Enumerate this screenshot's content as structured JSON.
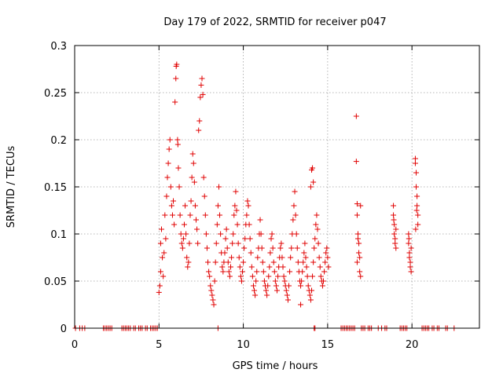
{
  "chart_data": {
    "type": "scatter",
    "title": "Day 179 of 2022, SRMTID for receiver p047",
    "xlabel": "GPS time / hours",
    "ylabel": "SRMTID / TECUs",
    "xlim": [
      0,
      24
    ],
    "ylim": [
      0,
      0.3
    ],
    "x_ticks": [
      0,
      5,
      10,
      15,
      20
    ],
    "x_tick_labels": [
      "0",
      "5",
      "10",
      "15",
      "20"
    ],
    "y_ticks": [
      0,
      0.05,
      0.1,
      0.15,
      0.2,
      0.25,
      0.3
    ],
    "y_tick_labels": [
      "0",
      "0.05",
      "0.1",
      "0.15",
      "0.2",
      "0.25",
      "0.3"
    ],
    "grid": true,
    "marker": "+",
    "series": [
      {
        "name": "SRMTID",
        "color": "#e00000",
        "points": [
          [
            0.05,
            0
          ],
          [
            0.3,
            0
          ],
          [
            0.45,
            0
          ],
          [
            0.6,
            0
          ],
          [
            1.7,
            0
          ],
          [
            1.8,
            0
          ],
          [
            1.9,
            0
          ],
          [
            2.0,
            0
          ],
          [
            2.1,
            0
          ],
          [
            2.2,
            0
          ],
          [
            2.8,
            0
          ],
          [
            2.9,
            0
          ],
          [
            3.0,
            0
          ],
          [
            3.1,
            0
          ],
          [
            3.2,
            0
          ],
          [
            3.3,
            0
          ],
          [
            3.5,
            0
          ],
          [
            3.6,
            0
          ],
          [
            3.8,
            0
          ],
          [
            3.9,
            0
          ],
          [
            4.0,
            0
          ],
          [
            4.2,
            0
          ],
          [
            4.3,
            0
          ],
          [
            4.5,
            0
          ],
          [
            4.6,
            0
          ],
          [
            4.7,
            0
          ],
          [
            4.8,
            0
          ],
          [
            4.9,
            0
          ],
          [
            8.5,
            0
          ],
          [
            14.2,
            0
          ],
          [
            14.25,
            0
          ],
          [
            15.8,
            0
          ],
          [
            15.9,
            0
          ],
          [
            16.0,
            0
          ],
          [
            16.1,
            0
          ],
          [
            16.2,
            0
          ],
          [
            16.3,
            0
          ],
          [
            16.4,
            0
          ],
          [
            16.5,
            0
          ],
          [
            16.6,
            0
          ],
          [
            17.0,
            0
          ],
          [
            17.1,
            0
          ],
          [
            17.2,
            0
          ],
          [
            17.4,
            0
          ],
          [
            17.5,
            0
          ],
          [
            17.6,
            0
          ],
          [
            18.0,
            0
          ],
          [
            18.2,
            0
          ],
          [
            18.4,
            0
          ],
          [
            18.5,
            0
          ],
          [
            19.3,
            0
          ],
          [
            19.4,
            0
          ],
          [
            19.5,
            0
          ],
          [
            19.6,
            0
          ],
          [
            19.7,
            0
          ],
          [
            20.6,
            0
          ],
          [
            20.7,
            0
          ],
          [
            20.8,
            0
          ],
          [
            20.9,
            0
          ],
          [
            21.0,
            0
          ],
          [
            21.2,
            0
          ],
          [
            21.3,
            0
          ],
          [
            21.5,
            0
          ],
          [
            21.6,
            0
          ],
          [
            22.0,
            0
          ],
          [
            22.1,
            0
          ],
          [
            22.5,
            0
          ],
          [
            5.0,
            0.038
          ],
          [
            5.05,
            0.045
          ],
          [
            5.1,
            0.06
          ],
          [
            5.1,
            0.09
          ],
          [
            5.15,
            0.105
          ],
          [
            5.2,
            0.075
          ],
          [
            5.25,
            0.055
          ],
          [
            5.3,
            0.08
          ],
          [
            5.35,
            0.12
          ],
          [
            5.4,
            0.095
          ],
          [
            5.45,
            0.14
          ],
          [
            5.5,
            0.16
          ],
          [
            5.55,
            0.175
          ],
          [
            5.6,
            0.19
          ],
          [
            5.65,
            0.2
          ],
          [
            5.7,
            0.15
          ],
          [
            5.75,
            0.13
          ],
          [
            5.8,
            0.12
          ],
          [
            5.85,
            0.135
          ],
          [
            5.9,
            0.11
          ],
          [
            5.95,
            0.24
          ],
          [
            6.0,
            0.265
          ],
          [
            6.02,
            0.278
          ],
          [
            6.05,
            0.28
          ],
          [
            6.1,
            0.2
          ],
          [
            6.12,
            0.195
          ],
          [
            6.15,
            0.17
          ],
          [
            6.2,
            0.15
          ],
          [
            6.25,
            0.12
          ],
          [
            6.3,
            0.1
          ],
          [
            6.35,
            0.09
          ],
          [
            6.4,
            0.085
          ],
          [
            6.45,
            0.095
          ],
          [
            6.5,
            0.11
          ],
          [
            6.55,
            0.13
          ],
          [
            6.6,
            0.1
          ],
          [
            6.65,
            0.075
          ],
          [
            6.7,
            0.065
          ],
          [
            6.75,
            0.07
          ],
          [
            6.8,
            0.09
          ],
          [
            6.85,
            0.12
          ],
          [
            6.9,
            0.135
          ],
          [
            6.95,
            0.16
          ],
          [
            7.0,
            0.185
          ],
          [
            7.05,
            0.175
          ],
          [
            7.1,
            0.155
          ],
          [
            7.15,
            0.13
          ],
          [
            7.2,
            0.115
          ],
          [
            7.25,
            0.105
          ],
          [
            7.3,
            0.09
          ],
          [
            7.35,
            0.21
          ],
          [
            7.4,
            0.22
          ],
          [
            7.45,
            0.245
          ],
          [
            7.5,
            0.258
          ],
          [
            7.55,
            0.265
          ],
          [
            7.6,
            0.248
          ],
          [
            7.65,
            0.16
          ],
          [
            7.7,
            0.14
          ],
          [
            7.75,
            0.12
          ],
          [
            7.8,
            0.1
          ],
          [
            7.85,
            0.085
          ],
          [
            7.9,
            0.07
          ],
          [
            7.95,
            0.06
          ],
          [
            8.0,
            0.055
          ],
          [
            8.05,
            0.045
          ],
          [
            8.1,
            0.04
          ],
          [
            8.15,
            0.035
          ],
          [
            8.2,
            0.03
          ],
          [
            8.25,
            0.025
          ],
          [
            8.3,
            0.05
          ],
          [
            8.35,
            0.07
          ],
          [
            8.4,
            0.09
          ],
          [
            8.45,
            0.11
          ],
          [
            8.5,
            0.13
          ],
          [
            8.55,
            0.15
          ],
          [
            8.6,
            0.12
          ],
          [
            8.65,
            0.1
          ],
          [
            8.7,
            0.08
          ],
          [
            8.75,
            0.065
          ],
          [
            8.8,
            0.06
          ],
          [
            8.85,
            0.07
          ],
          [
            8.9,
            0.08
          ],
          [
            8.95,
            0.095
          ],
          [
            9.0,
            0.105
          ],
          [
            9.05,
            0.085
          ],
          [
            9.1,
            0.07
          ],
          [
            9.15,
            0.06
          ],
          [
            9.2,
            0.055
          ],
          [
            9.25,
            0.065
          ],
          [
            9.3,
            0.075
          ],
          [
            9.35,
            0.09
          ],
          [
            9.4,
            0.1
          ],
          [
            9.45,
            0.12
          ],
          [
            9.5,
            0.13
          ],
          [
            9.55,
            0.145
          ],
          [
            9.6,
            0.125
          ],
          [
            9.65,
            0.11
          ],
          [
            9.7,
            0.09
          ],
          [
            9.75,
            0.075
          ],
          [
            9.8,
            0.065
          ],
          [
            9.85,
            0.055
          ],
          [
            9.9,
            0.05
          ],
          [
            9.95,
            0.06
          ],
          [
            10.0,
            0.07
          ],
          [
            10.05,
            0.085
          ],
          [
            10.1,
            0.095
          ],
          [
            10.15,
            0.11
          ],
          [
            10.2,
            0.12
          ],
          [
            10.25,
            0.135
          ],
          [
            10.3,
            0.13
          ],
          [
            10.35,
            0.11
          ],
          [
            10.4,
            0.095
          ],
          [
            10.45,
            0.08
          ],
          [
            10.5,
            0.065
          ],
          [
            10.55,
            0.055
          ],
          [
            10.6,
            0.045
          ],
          [
            10.65,
            0.04
          ],
          [
            10.7,
            0.035
          ],
          [
            10.75,
            0.05
          ],
          [
            10.8,
            0.06
          ],
          [
            10.85,
            0.075
          ],
          [
            10.9,
            0.085
          ],
          [
            10.95,
            0.1
          ],
          [
            11.0,
            0.115
          ],
          [
            11.05,
            0.1
          ],
          [
            11.1,
            0.085
          ],
          [
            11.15,
            0.07
          ],
          [
            11.2,
            0.06
          ],
          [
            11.25,
            0.05
          ],
          [
            11.3,
            0.045
          ],
          [
            11.35,
            0.04
          ],
          [
            11.4,
            0.035
          ],
          [
            11.45,
            0.045
          ],
          [
            11.5,
            0.055
          ],
          [
            11.55,
            0.065
          ],
          [
            11.6,
            0.08
          ],
          [
            11.65,
            0.095
          ],
          [
            11.7,
            0.1
          ],
          [
            11.75,
            0.085
          ],
          [
            11.8,
            0.07
          ],
          [
            11.85,
            0.06
          ],
          [
            11.9,
            0.05
          ],
          [
            11.95,
            0.045
          ],
          [
            12.0,
            0.04
          ],
          [
            12.05,
            0.055
          ],
          [
            12.1,
            0.065
          ],
          [
            12.15,
            0.075
          ],
          [
            12.2,
            0.085
          ],
          [
            12.25,
            0.09
          ],
          [
            12.3,
            0.075
          ],
          [
            12.35,
            0.065
          ],
          [
            12.4,
            0.055
          ],
          [
            12.45,
            0.05
          ],
          [
            12.5,
            0.045
          ],
          [
            12.55,
            0.04
          ],
          [
            12.6,
            0.035
          ],
          [
            12.65,
            0.03
          ],
          [
            12.7,
            0.045
          ],
          [
            12.75,
            0.06
          ],
          [
            12.8,
            0.075
          ],
          [
            12.85,
            0.085
          ],
          [
            12.9,
            0.1
          ],
          [
            12.95,
            0.115
          ],
          [
            13.0,
            0.13
          ],
          [
            13.05,
            0.145
          ],
          [
            13.1,
            0.12
          ],
          [
            13.15,
            0.1
          ],
          [
            13.2,
            0.085
          ],
          [
            13.25,
            0.07
          ],
          [
            13.3,
            0.06
          ],
          [
            13.35,
            0.05
          ],
          [
            13.4,
            0.045
          ],
          [
            13.45,
            0.05
          ],
          [
            13.5,
            0.06
          ],
          [
            13.55,
            0.07
          ],
          [
            13.6,
            0.08
          ],
          [
            13.65,
            0.09
          ],
          [
            13.7,
            0.075
          ],
          [
            13.75,
            0.065
          ],
          [
            13.8,
            0.055
          ],
          [
            13.85,
            0.045
          ],
          [
            13.9,
            0.04
          ],
          [
            13.95,
            0.035
          ],
          [
            14.0,
            0.03
          ],
          [
            14.05,
            0.04
          ],
          [
            14.1,
            0.055
          ],
          [
            14.15,
            0.07
          ],
          [
            14.2,
            0.085
          ],
          [
            14.25,
            0.095
          ],
          [
            14.3,
            0.11
          ],
          [
            14.35,
            0.12
          ],
          [
            14.4,
            0.105
          ],
          [
            14.45,
            0.09
          ],
          [
            14.5,
            0.075
          ],
          [
            14.55,
            0.065
          ],
          [
            14.6,
            0.055
          ],
          [
            14.65,
            0.05
          ],
          [
            14.7,
            0.045
          ],
          [
            14.75,
            0.05
          ],
          [
            14.8,
            0.06
          ],
          [
            14.85,
            0.07
          ],
          [
            14.9,
            0.08
          ],
          [
            14.95,
            0.085
          ],
          [
            15.0,
            0.075
          ],
          [
            15.05,
            0.065
          ],
          [
            14.0,
            0.15
          ],
          [
            14.05,
            0.168
          ],
          [
            14.1,
            0.17
          ],
          [
            14.15,
            0.155
          ],
          [
            13.4,
            0.025
          ],
          [
            16.7,
            0.225
          ],
          [
            16.7,
            0.177
          ],
          [
            16.75,
            0.132
          ],
          [
            16.75,
            0.12
          ],
          [
            16.8,
            0.1
          ],
          [
            16.8,
            0.095
          ],
          [
            16.85,
            0.09
          ],
          [
            16.85,
            0.08
          ],
          [
            16.9,
            0.075
          ],
          [
            16.9,
            0.06
          ],
          [
            16.95,
            0.055
          ],
          [
            16.95,
            0.13
          ],
          [
            16.75,
            0.07
          ],
          [
            18.9,
            0.13
          ],
          [
            18.9,
            0.12
          ],
          [
            18.95,
            0.11
          ],
          [
            18.95,
            0.1
          ],
          [
            19.0,
            0.095
          ],
          [
            19.0,
            0.09
          ],
          [
            19.05,
            0.085
          ],
          [
            19.05,
            0.105
          ],
          [
            18.92,
            0.115
          ],
          [
            19.8,
            0.1
          ],
          [
            19.8,
            0.09
          ],
          [
            19.85,
            0.08
          ],
          [
            19.85,
            0.075
          ],
          [
            19.9,
            0.07
          ],
          [
            19.9,
            0.065
          ],
          [
            19.95,
            0.06
          ],
          [
            19.95,
            0.085
          ],
          [
            19.82,
            0.095
          ],
          [
            20.2,
            0.18
          ],
          [
            20.2,
            0.175
          ],
          [
            20.25,
            0.165
          ],
          [
            20.25,
            0.15
          ],
          [
            20.3,
            0.14
          ],
          [
            20.3,
            0.13
          ],
          [
            20.35,
            0.12
          ],
          [
            20.35,
            0.11
          ],
          [
            20.22,
            0.105
          ],
          [
            20.28,
            0.125
          ]
        ]
      }
    ]
  }
}
